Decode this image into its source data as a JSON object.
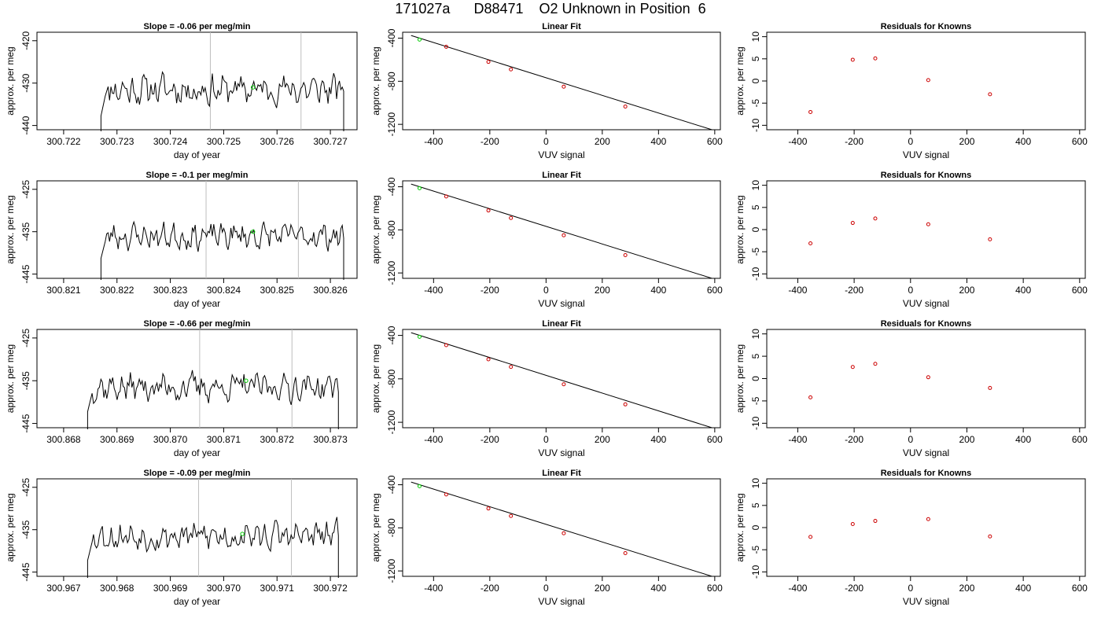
{
  "title": "171027a      D88471    O2 Unknown in Position  6",
  "panel_titles": {
    "linear_fit": "Linear Fit",
    "residuals": "Residuals for Knowns"
  },
  "colors": {
    "line": "#000000",
    "marker_green": "#00cc00",
    "marker_red": "#cc0000",
    "vline": "#bebebe"
  },
  "chart_data": [
    {
      "type": "line",
      "row": 1,
      "title": "Slope =  -0.06  per meg/min",
      "xlabel": "day of year",
      "ylabel": "approx. per meg",
      "xlim": [
        300.7215,
        300.7275
      ],
      "ylim": [
        -441,
        -418
      ],
      "xticks": [
        "300.722",
        "300.723",
        "300.724",
        "300.725",
        "300.726",
        "300.727"
      ],
      "yticks": [
        "-420",
        "-430",
        "-440"
      ],
      "xstart": 300.7227,
      "xend": 300.72725,
      "baseline": -431.5,
      "amplitude": 2.6,
      "seed": 11,
      "vlines": [
        300.72475,
        300.72645
      ],
      "green_point": [
        300.72555,
        -431
      ]
    },
    {
      "type": "line",
      "row": 2,
      "title": "Slope =  -0.1  per meg/min",
      "xlabel": "day of year",
      "ylabel": "approx. per meg",
      "xlim": [
        300.8205,
        300.8265
      ],
      "ylim": [
        -446,
        -423
      ],
      "xticks": [
        "300.821",
        "300.822",
        "300.823",
        "300.824",
        "300.825",
        "300.826"
      ],
      "yticks": [
        "-425",
        "-435",
        "-445"
      ],
      "xstart": 300.8217,
      "xend": 300.82625,
      "baseline": -436,
      "amplitude": 2.2,
      "seed": 23,
      "vlines": [
        300.82367,
        300.8254
      ],
      "green_point": [
        300.82455,
        -435
      ]
    },
    {
      "type": "line",
      "row": 3,
      "title": "Slope =  -0.66  per meg/min",
      "xlabel": "day of year",
      "ylabel": "approx. per meg",
      "xlim": [
        300.8675,
        300.8735
      ],
      "ylim": [
        -446,
        -423
      ],
      "xticks": [
        "300.868",
        "300.869",
        "300.870",
        "300.871",
        "300.872",
        "300.873"
      ],
      "yticks": [
        "-425",
        "-435",
        "-445"
      ],
      "xstart": 300.86845,
      "xend": 300.87315,
      "baseline": -436.5,
      "amplitude": 2.4,
      "seed": 37,
      "vlines": [
        300.87055,
        300.87228
      ],
      "green_point": [
        300.87142,
        -435
      ]
    },
    {
      "type": "line",
      "row": 4,
      "title": "Slope =  -0.09  per meg/min",
      "xlabel": "day of year",
      "ylabel": "approx. per meg",
      "xlim": [
        300.9665,
        300.9725
      ],
      "ylim": [
        -446,
        -423
      ],
      "xticks": [
        "300.967",
        "300.968",
        "300.969",
        "300.970",
        "300.971",
        "300.972"
      ],
      "yticks": [
        "-425",
        "-435",
        "-445"
      ],
      "xstart": 300.96745,
      "xend": 300.97215,
      "baseline": -436.5,
      "amplitude": 2.4,
      "seed": 53,
      "vlines": [
        300.96953,
        300.97127
      ],
      "green_point": [
        300.97035,
        -436
      ]
    },
    {
      "type": "scatter",
      "row": 1,
      "title": "Linear Fit",
      "xlabel": "VUV signal",
      "ylabel": "approx. per meg",
      "xlim": [
        -510,
        620
      ],
      "ylim": [
        -1250,
        -345
      ],
      "xticks": [
        -400,
        -200,
        0,
        200,
        400,
        600
      ],
      "yticks": [
        -400,
        -800,
        -1200
      ],
      "fit_line": [
        [
          -480,
          -375
        ],
        [
          590,
          -1250
        ]
      ],
      "green_point": [
        -450,
        -413
      ],
      "red_points": [
        [
          -355,
          -480
        ],
        [
          -205,
          -620
        ],
        [
          -125,
          -690
        ],
        [
          63,
          -850
        ],
        [
          282,
          -1035
        ]
      ]
    },
    {
      "type": "scatter",
      "row": 2,
      "title": "Linear Fit",
      "xlabel": "VUV signal",
      "ylabel": "approx. per meg",
      "xlim": [
        -510,
        620
      ],
      "ylim": [
        -1250,
        -345
      ],
      "xticks": [
        -400,
        -200,
        0,
        200,
        400,
        600
      ],
      "yticks": [
        -400,
        -800,
        -1200
      ],
      "fit_line": [
        [
          -480,
          -375
        ],
        [
          590,
          -1250
        ]
      ],
      "green_point": [
        -450,
        -413
      ],
      "red_points": [
        [
          -355,
          -490
        ],
        [
          -205,
          -620
        ],
        [
          -125,
          -690
        ],
        [
          63,
          -850
        ],
        [
          282,
          -1035
        ]
      ]
    },
    {
      "type": "scatter",
      "row": 3,
      "title": "Linear Fit",
      "xlabel": "VUV signal",
      "ylabel": "approx. per meg",
      "xlim": [
        -510,
        620
      ],
      "ylim": [
        -1250,
        -345
      ],
      "xticks": [
        -400,
        -200,
        0,
        200,
        400,
        600
      ],
      "yticks": [
        -400,
        -800,
        -1200
      ],
      "fit_line": [
        [
          -480,
          -375
        ],
        [
          590,
          -1250
        ]
      ],
      "green_point": [
        -450,
        -413
      ],
      "red_points": [
        [
          -355,
          -490
        ],
        [
          -205,
          -620
        ],
        [
          -125,
          -690
        ],
        [
          63,
          -850
        ],
        [
          282,
          -1035
        ]
      ]
    },
    {
      "type": "scatter",
      "row": 4,
      "title": "Linear Fit",
      "xlabel": "VUV signal",
      "ylabel": "approx. per meg",
      "xlim": [
        -510,
        620
      ],
      "ylim": [
        -1250,
        -345
      ],
      "xticks": [
        -400,
        -200,
        0,
        200,
        400,
        600
      ],
      "yticks": [
        -400,
        -800,
        -1200
      ],
      "fit_line": [
        [
          -480,
          -375
        ],
        [
          590,
          -1250
        ]
      ],
      "green_point": [
        -450,
        -413
      ],
      "red_points": [
        [
          -355,
          -490
        ],
        [
          -205,
          -620
        ],
        [
          -125,
          -690
        ],
        [
          63,
          -850
        ],
        [
          282,
          -1035
        ]
      ]
    },
    {
      "type": "scatter",
      "row": 1,
      "title": "Residuals for Knowns",
      "xlabel": "VUV signal",
      "ylabel": "approx. per meg",
      "xlim": [
        -510,
        620
      ],
      "ylim": [
        -11,
        11
      ],
      "xticks": [
        -400,
        -200,
        0,
        200,
        400,
        600
      ],
      "yticks": [
        10,
        5,
        0,
        -5,
        -10
      ],
      "red_points": [
        [
          -355,
          -7
        ],
        [
          -205,
          4.8
        ],
        [
          -125,
          5.1
        ],
        [
          63,
          0.2
        ],
        [
          282,
          -3
        ]
      ]
    },
    {
      "type": "scatter",
      "row": 2,
      "title": "Residuals for Knowns",
      "xlabel": "VUV signal",
      "ylabel": "approx. per meg",
      "xlim": [
        -510,
        620
      ],
      "ylim": [
        -11,
        11
      ],
      "xticks": [
        -400,
        -200,
        0,
        200,
        400,
        600
      ],
      "yticks": [
        10,
        5,
        0,
        -5,
        -10
      ],
      "red_points": [
        [
          -355,
          -3.1
        ],
        [
          -205,
          1.5
        ],
        [
          -125,
          2.5
        ],
        [
          63,
          1.2
        ],
        [
          282,
          -2.2
        ]
      ]
    },
    {
      "type": "scatter",
      "row": 3,
      "title": "Residuals for Knowns",
      "xlabel": "VUV signal",
      "ylabel": "approx. per meg",
      "xlim": [
        -510,
        620
      ],
      "ylim": [
        -11,
        11
      ],
      "xticks": [
        -400,
        -200,
        0,
        200,
        400,
        600
      ],
      "yticks": [
        10,
        5,
        0,
        -5,
        -10
      ],
      "red_points": [
        [
          -355,
          -4.2
        ],
        [
          -205,
          2.6
        ],
        [
          -125,
          3.3
        ],
        [
          63,
          0.3
        ],
        [
          282,
          -2.1
        ]
      ]
    },
    {
      "type": "scatter",
      "row": 4,
      "title": "Residuals for Knowns",
      "xlabel": "VUV signal",
      "ylabel": "approx. per meg",
      "xlim": [
        -510,
        620
      ],
      "ylim": [
        -11,
        11
      ],
      "xticks": [
        -400,
        -200,
        0,
        200,
        400,
        600
      ],
      "yticks": [
        10,
        5,
        0,
        -5,
        -10
      ],
      "red_points": [
        [
          -355,
          -2.1
        ],
        [
          -205,
          0.8
        ],
        [
          -125,
          1.5
        ],
        [
          63,
          1.9
        ],
        [
          282,
          -2.0
        ]
      ]
    }
  ]
}
